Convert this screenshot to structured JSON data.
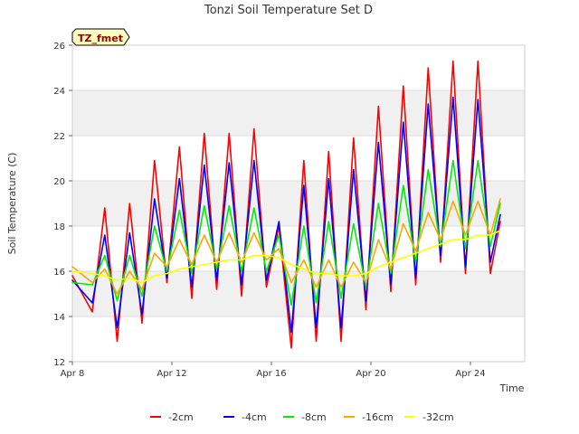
{
  "chart_data": {
    "type": "line",
    "title": "Tonzi Soil Temperature Set D",
    "badge": "TZ_fmet",
    "xlabel": "Time",
    "ylabel": "Soil Temperature (C)",
    "xlim": [
      "Apr 8",
      "Apr 26"
    ],
    "ylim": [
      12,
      26
    ],
    "x_ticks": [
      "Apr 8",
      "Apr 12",
      "Apr 16",
      "Apr 20",
      "Apr 24"
    ],
    "y_ticks": [
      12,
      14,
      16,
      18,
      20,
      22,
      24,
      26
    ],
    "grid": "alternating horizontal bands",
    "legend_position": "bottom",
    "x_day_offsets": [
      0,
      0.8,
      1.3,
      1.8,
      2.3,
      2.8,
      3.3,
      3.8,
      4.3,
      4.8,
      5.3,
      5.8,
      6.3,
      6.8,
      7.3,
      7.8,
      8.3,
      8.8,
      9.3,
      9.8,
      10.3,
      10.8,
      11.3,
      11.8,
      12.3,
      12.8,
      13.3,
      13.8,
      14.3,
      14.8,
      15.3,
      15.8,
      16.3,
      16.8,
      17.2
    ],
    "series": [
      {
        "name": "-2cm",
        "color": "#ff0000",
        "values": [
          15.8,
          14.2,
          18.8,
          12.9,
          19.0,
          13.7,
          20.9,
          15.5,
          21.5,
          14.8,
          22.1,
          15.2,
          22.1,
          14.9,
          22.3,
          15.3,
          18.0,
          12.6,
          20.9,
          12.9,
          21.3,
          12.9,
          21.9,
          14.3,
          23.3,
          15.1,
          24.2,
          15.4,
          25.0,
          16.4,
          25.3,
          15.9,
          25.3,
          15.9,
          18.2
        ]
      },
      {
        "name": "-4cm",
        "color": "#0000ff",
        "values": [
          15.6,
          14.6,
          17.6,
          13.5,
          17.7,
          14.1,
          19.2,
          15.7,
          20.1,
          15.3,
          20.7,
          15.6,
          20.8,
          15.4,
          20.9,
          15.6,
          18.2,
          13.3,
          19.8,
          13.5,
          20.1,
          13.5,
          20.5,
          14.7,
          21.7,
          15.4,
          22.6,
          15.7,
          23.4,
          16.7,
          23.7,
          16.2,
          23.6,
          16.4,
          18.5
        ]
      },
      {
        "name": "-8cm",
        "color": "#00ee00",
        "values": [
          15.5,
          15.4,
          16.7,
          14.7,
          16.7,
          14.9,
          18.0,
          16.0,
          18.7,
          15.9,
          18.9,
          16.1,
          18.9,
          16.0,
          18.8,
          16.0,
          17.6,
          14.5,
          18.0,
          14.6,
          18.2,
          14.8,
          18.1,
          15.3,
          19.0,
          15.9,
          19.8,
          16.4,
          20.5,
          17.1,
          20.9,
          17.0,
          20.9,
          17.1,
          19.0
        ]
      },
      {
        "name": "-16cm",
        "color": "#ffa500",
        "values": [
          16.2,
          15.5,
          16.1,
          15.0,
          16.0,
          15.2,
          16.8,
          16.2,
          17.4,
          16.3,
          17.6,
          16.4,
          17.7,
          16.4,
          17.7,
          16.5,
          17.0,
          15.5,
          16.5,
          15.3,
          16.5,
          15.3,
          16.4,
          15.5,
          17.4,
          16.1,
          18.1,
          16.9,
          18.6,
          17.4,
          19.1,
          17.6,
          19.1,
          17.6,
          19.2
        ]
      },
      {
        "name": "-32cm",
        "color": "#ffff00",
        "values": [
          16.0,
          15.9,
          15.8,
          15.6,
          15.7,
          15.5,
          15.8,
          15.9,
          16.1,
          16.2,
          16.3,
          16.4,
          16.5,
          16.5,
          16.7,
          16.7,
          16.6,
          16.3,
          16.1,
          15.9,
          15.9,
          15.8,
          15.8,
          15.9,
          16.2,
          16.4,
          16.6,
          16.8,
          17.0,
          17.2,
          17.4,
          17.4,
          17.6,
          17.6,
          17.8
        ]
      }
    ]
  }
}
